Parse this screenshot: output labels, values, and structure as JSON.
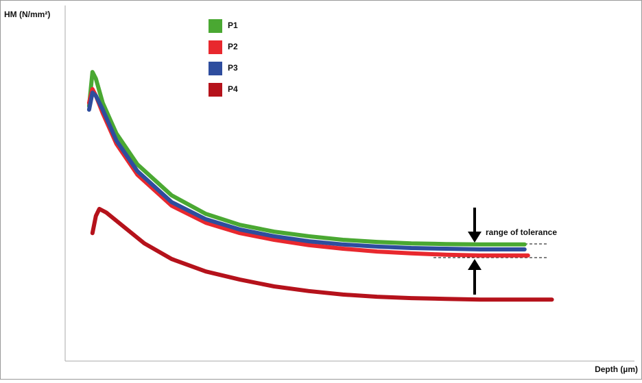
{
  "chart_data": {
    "type": "line",
    "y_label": "HM (N/mm²)",
    "x_label": "Depth (µm)",
    "annotation": "range of tolerance",
    "xlim": [
      0,
      100
    ],
    "ylim": [
      0,
      100
    ],
    "series": [
      {
        "name": "P1",
        "color": "#4aa832",
        "x": [
          4.2,
          4.8,
          5.4,
          6.6,
          9.0,
          12.7,
          18.7,
          24.7,
          30.7,
          36.7,
          42.8,
          48.8,
          54.8,
          60.8,
          66.9,
          72.9,
          80.7
        ],
        "values": [
          71.7,
          81.3,
          79.4,
          72.6,
          64.0,
          55.3,
          46.6,
          41.4,
          38.3,
          36.4,
          35.1,
          34.1,
          33.5,
          33.1,
          32.9,
          32.8,
          32.8
        ]
      },
      {
        "name": "P2",
        "color": "#e8282e",
        "x": [
          4.2,
          4.8,
          5.4,
          6.6,
          9.0,
          12.7,
          18.7,
          24.7,
          30.7,
          36.7,
          42.8,
          48.8,
          54.8,
          60.8,
          66.9,
          72.9,
          81.3
        ],
        "values": [
          72.6,
          76.5,
          74.6,
          69.7,
          61.1,
          52.4,
          43.7,
          38.9,
          36.0,
          34.1,
          32.6,
          31.6,
          30.8,
          30.3,
          29.9,
          29.7,
          29.7
        ]
      },
      {
        "name": "P3",
        "color": "#2e4d9e",
        "x": [
          4.2,
          4.8,
          5.4,
          6.6,
          9.0,
          12.7,
          18.7,
          24.7,
          30.7,
          36.7,
          42.8,
          48.8,
          54.8,
          60.8,
          66.9,
          72.9,
          80.7
        ],
        "values": [
          70.7,
          75.5,
          74.6,
          70.7,
          62.0,
          53.4,
          44.7,
          39.9,
          37.0,
          35.1,
          33.7,
          32.8,
          32.2,
          31.8,
          31.6,
          31.4,
          31.4
        ]
      },
      {
        "name": "P4",
        "color": "#b5121b",
        "x": [
          4.8,
          5.4,
          6.0,
          7.2,
          10.2,
          13.9,
          18.7,
          24.7,
          30.7,
          36.7,
          42.8,
          48.8,
          54.8,
          60.8,
          66.9,
          72.9,
          85.5
        ],
        "values": [
          36.0,
          40.8,
          42.8,
          41.8,
          37.9,
          33.1,
          28.7,
          25.2,
          22.9,
          21.0,
          19.7,
          18.7,
          18.1,
          17.7,
          17.5,
          17.3,
          17.3
        ]
      }
    ]
  }
}
